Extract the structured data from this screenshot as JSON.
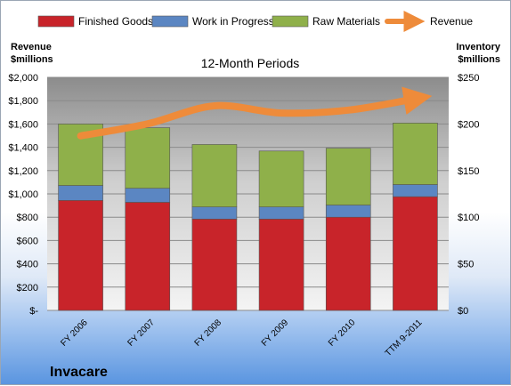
{
  "chart_data": {
    "type": "bar",
    "stacked": true,
    "subtitle": "12-Month Periods",
    "company": "Invacare",
    "categories": [
      "FY 2006",
      "FY 2007",
      "FY 2008",
      "FY 2009",
      "FY 2010",
      "TTM 9-2011"
    ],
    "left_axis": {
      "label_line1": "Revenue",
      "label_line2": "$millions",
      "range": [
        0,
        2000
      ],
      "ticks": [
        "$-",
        "$200",
        "$400",
        "$600",
        "$800",
        "$1,000",
        "$1,200",
        "$1,400",
        "$1,600",
        "$1,800",
        "$2,000"
      ]
    },
    "right_axis": {
      "label_line1": "Inventory",
      "label_line2": "$millions",
      "range": [
        0,
        250
      ],
      "ticks": [
        "$0",
        "$50",
        "$100",
        "$150",
        "$200",
        "$250"
      ]
    },
    "series": [
      {
        "name": "Finished Goods",
        "axis": "right",
        "color": "#c8242a",
        "values": [
          118,
          116,
          98,
          98,
          100,
          122
        ]
      },
      {
        "name": "Work in Progress",
        "axis": "right",
        "color": "#5b86c2",
        "values": [
          16,
          15,
          13,
          13,
          13,
          13
        ]
      },
      {
        "name": "Raw Materials",
        "axis": "right",
        "color": "#8fb04a",
        "values": [
          66,
          65,
          67,
          60,
          61,
          66
        ]
      },
      {
        "name": "Revenue",
        "axis": "left",
        "type": "line",
        "color": "#ee8b3a",
        "values": [
          1498,
          1601,
          1756,
          1694,
          1719,
          1816
        ]
      }
    ],
    "grid": true,
    "legend": "top"
  }
}
